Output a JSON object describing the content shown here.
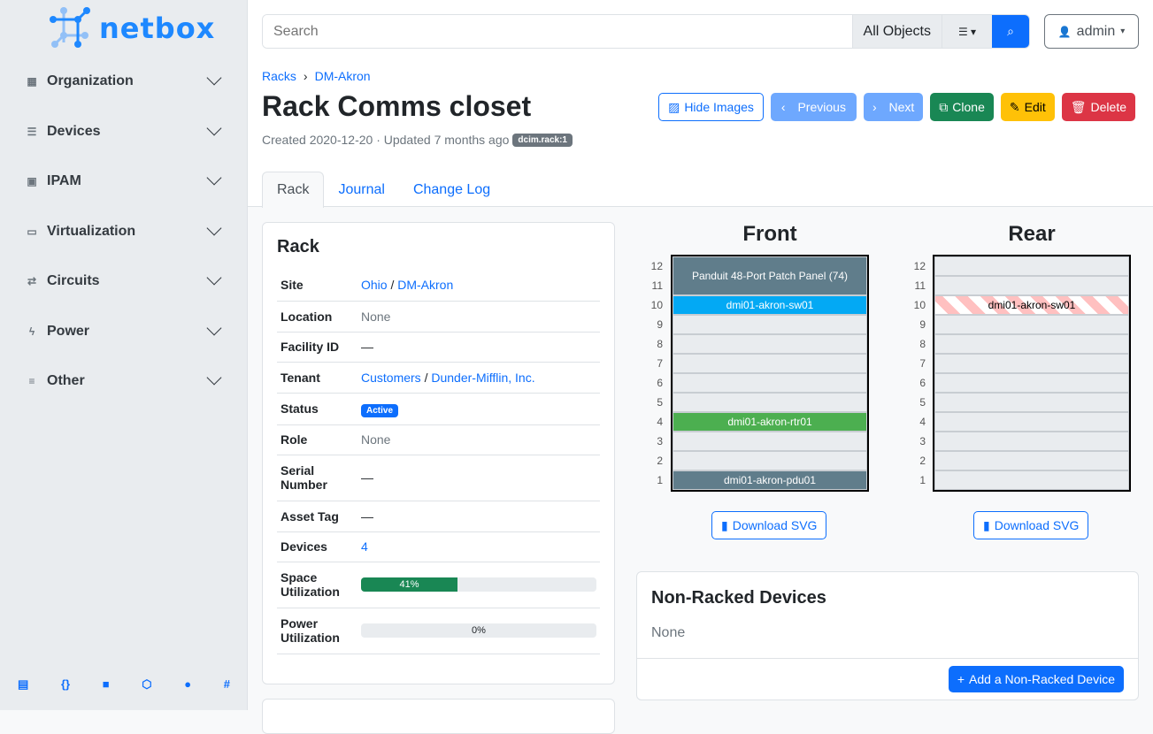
{
  "brand": "netbox",
  "sidebar": {
    "items": [
      {
        "label": "Organization",
        "icon": "building-icon"
      },
      {
        "label": "Devices",
        "icon": "server-icon"
      },
      {
        "label": "IPAM",
        "icon": "ip-icon"
      },
      {
        "label": "Virtualization",
        "icon": "monitor-icon"
      },
      {
        "label": "Circuits",
        "icon": "circuit-icon"
      },
      {
        "label": "Power",
        "icon": "lightning-icon"
      },
      {
        "label": "Other",
        "icon": "other-icon"
      }
    ],
    "footer_icons": [
      "docs-icon",
      "api-icon",
      "book-icon",
      "graphql-icon",
      "github-icon",
      "slack-icon"
    ]
  },
  "search": {
    "placeholder": "Search",
    "scope": "All Objects"
  },
  "user": "admin",
  "breadcrumb": [
    "Racks",
    "DM-Akron"
  ],
  "title": "Rack Comms closet",
  "meta": {
    "text": "Created 2020-12-20 · Updated 7 months ago",
    "badge": "dcim.rack:1"
  },
  "buttons": {
    "hide_images": "Hide Images",
    "previous": "Previous",
    "next": "Next",
    "clone": "Clone",
    "edit": "Edit",
    "delete": "Delete"
  },
  "tabs": [
    "Rack",
    "Journal",
    "Change Log"
  ],
  "rack_card": {
    "title": "Rack",
    "site": {
      "label": "Site",
      "region": "Ohio",
      "site": "DM-Akron"
    },
    "location": {
      "label": "Location",
      "value": "None"
    },
    "facility": {
      "label": "Facility ID",
      "value": "—"
    },
    "tenant": {
      "label": "Tenant",
      "group": "Customers",
      "tenant": "Dunder-Mifflin, Inc."
    },
    "status": {
      "label": "Status",
      "value": "Active"
    },
    "role": {
      "label": "Role",
      "value": "None"
    },
    "serial": {
      "label": "Serial Number",
      "value": "—"
    },
    "asset": {
      "label": "Asset Tag",
      "value": "—"
    },
    "devices": {
      "label": "Devices",
      "value": "4"
    },
    "space": {
      "label": "Space Utilization",
      "value": "41%",
      "percent": 41
    },
    "power": {
      "label": "Power Utilization",
      "value": "0%",
      "percent": 0
    }
  },
  "elevations": {
    "front_title": "Front",
    "rear_title": "Rear",
    "units": [
      "12",
      "11",
      "10",
      "9",
      "8",
      "7",
      "6",
      "5",
      "4",
      "3",
      "2",
      "1"
    ],
    "front": [
      {
        "name": "Panduit 48-Port Patch Panel (74)",
        "top": 12,
        "height": 2,
        "color": "#607d8b"
      },
      {
        "name": "dmi01-akron-sw01",
        "top": 10,
        "height": 1,
        "color": "#03a9f4"
      },
      {
        "name": "dmi01-akron-rtr01",
        "top": 4,
        "height": 1,
        "color": "#4caf50"
      },
      {
        "name": "dmi01-akron-pdu01",
        "top": 1,
        "height": 1,
        "color": "#607d8b"
      }
    ],
    "rear": [
      {
        "name": "dmi01-akron-sw01",
        "top": 10,
        "height": 1,
        "color": "striped"
      }
    ],
    "download": "Download SVG"
  },
  "non_racked": {
    "title": "Non-Racked Devices",
    "value": "None",
    "add": "Add a Non-Racked Device"
  }
}
